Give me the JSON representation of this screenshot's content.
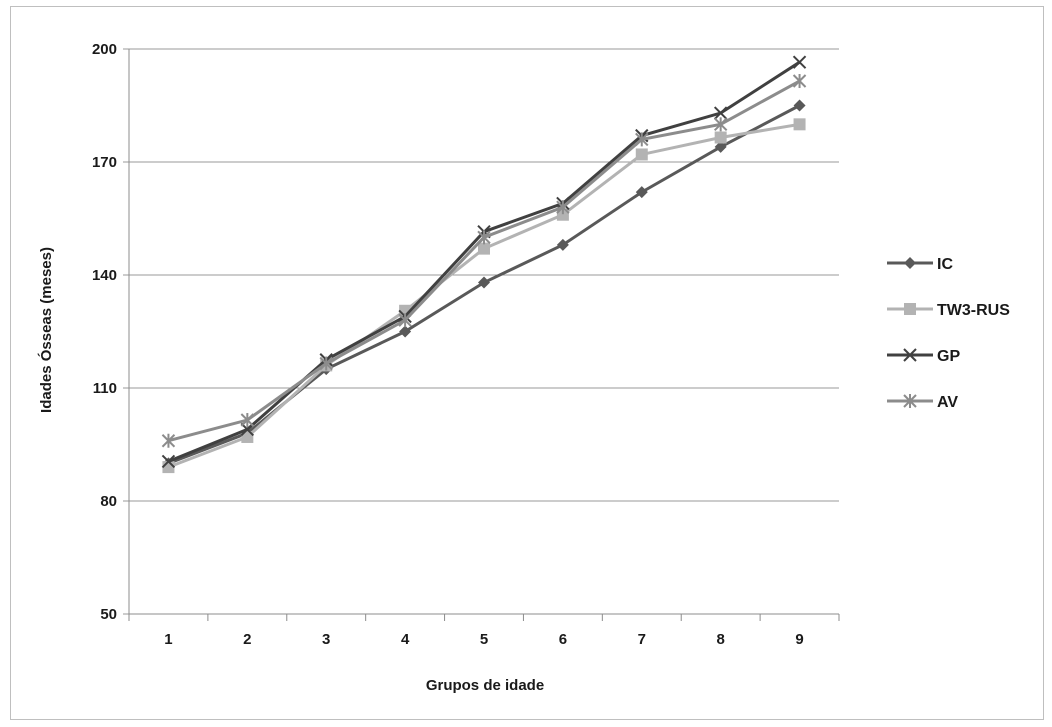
{
  "chart_data": {
    "type": "line",
    "title": "",
    "xlabel": "Grupos de idade",
    "ylabel": "Idades Ósseas (meses)",
    "categories": [
      "1",
      "2",
      "3",
      "4",
      "5",
      "6",
      "7",
      "8",
      "9"
    ],
    "ylim": [
      50,
      200
    ],
    "yticks": [
      50,
      80,
      110,
      140,
      170,
      200
    ],
    "grid": true,
    "legend_position": "right",
    "series": [
      {
        "name": "IC",
        "color": "#595959",
        "marker": "diamond",
        "values": [
          90,
          98,
          115,
          125,
          138,
          148,
          162,
          174,
          185
        ]
      },
      {
        "name": "TW3-RUS",
        "color": "#b3b3b3",
        "marker": "square",
        "values": [
          89,
          97,
          116,
          130.5,
          147,
          156,
          172,
          176.5,
          180
        ]
      },
      {
        "name": "GP",
        "color": "#404040",
        "marker": "x",
        "values": [
          90.5,
          99,
          117.5,
          129,
          151.5,
          159,
          177,
          183,
          196.5
        ]
      },
      {
        "name": "AV",
        "color": "#8c8c8c",
        "marker": "star",
        "values": [
          96,
          101.5,
          116.5,
          128,
          150,
          158,
          176,
          180,
          191.5
        ]
      }
    ]
  }
}
